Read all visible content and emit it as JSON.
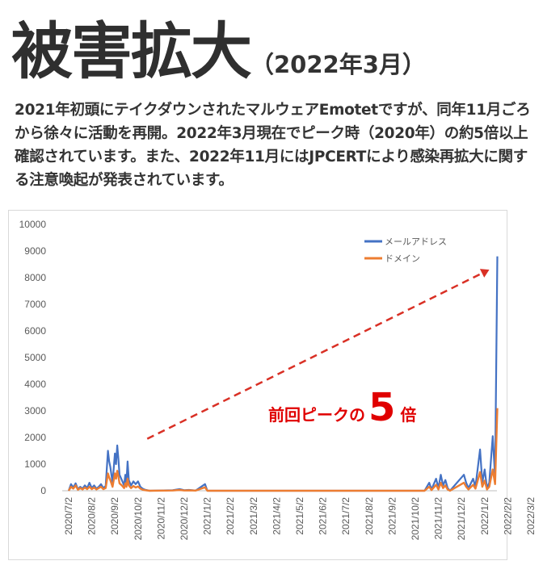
{
  "title": {
    "main": "被害拡大",
    "sub": "（2022年3月）"
  },
  "description": "2021年初頭にテイクダウンされたマルウェアEmotetですが、同年11月ごろから徐々に活動を再開。2022年3月現在でピーク時（2020年）の約5倍以上確認されています。また、2022年11月にはJPCERTにより感染再拡大に関する注意喚起が発表されています。",
  "chart_data": {
    "type": "line",
    "ylim": [
      0,
      10000
    ],
    "yticks": [
      0,
      1000,
      2000,
      3000,
      4000,
      5000,
      6000,
      7000,
      8000,
      9000,
      10000
    ],
    "x_tick_labels": [
      "2020/7/2",
      "2020/8/2",
      "2020/9/2",
      "2020/10/2",
      "2020/11/2",
      "2020/12/2",
      "2021/1/2",
      "2021/2/2",
      "2021/3/2",
      "2021/4/2",
      "2021/5/2",
      "2021/6/2",
      "2021/7/2",
      "2021/8/2",
      "2021/9/2",
      "2021/10/2",
      "2021/11/2",
      "2021/12/2",
      "2022/1/2",
      "2022/2/2",
      "2022/3/2"
    ],
    "legend_position": "top-right",
    "grid": false,
    "series": [
      {
        "name": "メールアドレス",
        "color": "#4472c4",
        "points": [
          [
            0.0,
            0
          ],
          [
            0.1,
            250
          ],
          [
            0.2,
            120
          ],
          [
            0.3,
            280
          ],
          [
            0.4,
            60
          ],
          [
            0.5,
            150
          ],
          [
            0.6,
            80
          ],
          [
            0.7,
            200
          ],
          [
            0.8,
            100
          ],
          [
            0.9,
            300
          ],
          [
            1.0,
            100
          ],
          [
            1.1,
            200
          ],
          [
            1.2,
            80
          ],
          [
            1.3,
            150
          ],
          [
            1.4,
            250
          ],
          [
            1.5,
            100
          ],
          [
            1.6,
            180
          ],
          [
            1.7,
            1500
          ],
          [
            1.75,
            1100
          ],
          [
            1.8,
            900
          ],
          [
            1.9,
            300
          ],
          [
            2.0,
            1400
          ],
          [
            2.05,
            1000
          ],
          [
            2.1,
            1700
          ],
          [
            2.15,
            1200
          ],
          [
            2.2,
            600
          ],
          [
            2.3,
            400
          ],
          [
            2.4,
            200
          ],
          [
            2.45,
            600
          ],
          [
            2.5,
            300
          ],
          [
            2.55,
            1100
          ],
          [
            2.6,
            400
          ],
          [
            2.7,
            200
          ],
          [
            2.8,
            350
          ],
          [
            2.9,
            250
          ],
          [
            3.0,
            350
          ],
          [
            3.1,
            150
          ],
          [
            3.2,
            80
          ],
          [
            3.3,
            40
          ],
          [
            3.5,
            0
          ],
          [
            4.5,
            20
          ],
          [
            4.8,
            60
          ],
          [
            5.0,
            20
          ],
          [
            5.2,
            30
          ],
          [
            5.5,
            10
          ],
          [
            5.9,
            250
          ],
          [
            6.0,
            0
          ],
          [
            15.4,
            0
          ],
          [
            15.6,
            300
          ],
          [
            15.7,
            50
          ],
          [
            15.9,
            450
          ],
          [
            16.0,
            100
          ],
          [
            16.1,
            600
          ],
          [
            16.2,
            200
          ],
          [
            16.3,
            400
          ],
          [
            16.4,
            100
          ],
          [
            16.5,
            0
          ],
          [
            17.1,
            600
          ],
          [
            17.2,
            300
          ],
          [
            17.3,
            100
          ],
          [
            17.5,
            450
          ],
          [
            17.6,
            150
          ],
          [
            17.8,
            1550
          ],
          [
            17.9,
            300
          ],
          [
            18.0,
            800
          ],
          [
            18.1,
            100
          ],
          [
            18.2,
            300
          ],
          [
            18.35,
            2050
          ],
          [
            18.45,
            500
          ],
          [
            18.55,
            8800
          ]
        ]
      },
      {
        "name": "ドメイン",
        "color": "#ed7d31",
        "points": [
          [
            0.0,
            0
          ],
          [
            0.1,
            150
          ],
          [
            0.2,
            80
          ],
          [
            0.3,
            200
          ],
          [
            0.4,
            40
          ],
          [
            0.5,
            100
          ],
          [
            0.6,
            50
          ],
          [
            0.7,
            120
          ],
          [
            0.8,
            60
          ],
          [
            0.9,
            150
          ],
          [
            1.0,
            60
          ],
          [
            1.1,
            120
          ],
          [
            1.2,
            50
          ],
          [
            1.3,
            100
          ],
          [
            1.4,
            150
          ],
          [
            1.5,
            60
          ],
          [
            1.6,
            100
          ],
          [
            1.7,
            650
          ],
          [
            1.75,
            500
          ],
          [
            1.8,
            400
          ],
          [
            1.9,
            150
          ],
          [
            2.0,
            650
          ],
          [
            2.05,
            450
          ],
          [
            2.1,
            750
          ],
          [
            2.15,
            550
          ],
          [
            2.2,
            280
          ],
          [
            2.3,
            200
          ],
          [
            2.4,
            100
          ],
          [
            2.45,
            280
          ],
          [
            2.5,
            150
          ],
          [
            2.55,
            450
          ],
          [
            2.6,
            200
          ],
          [
            2.7,
            100
          ],
          [
            2.8,
            180
          ],
          [
            2.9,
            120
          ],
          [
            3.0,
            160
          ],
          [
            3.1,
            80
          ],
          [
            3.2,
            40
          ],
          [
            3.3,
            20
          ],
          [
            3.5,
            0
          ],
          [
            4.5,
            10
          ],
          [
            4.8,
            30
          ],
          [
            5.0,
            10
          ],
          [
            5.2,
            15
          ],
          [
            5.5,
            5
          ],
          [
            5.9,
            130
          ],
          [
            6.0,
            0
          ],
          [
            15.4,
            0
          ],
          [
            15.6,
            150
          ],
          [
            15.7,
            25
          ],
          [
            15.9,
            220
          ],
          [
            16.0,
            50
          ],
          [
            16.1,
            300
          ],
          [
            16.2,
            100
          ],
          [
            16.3,
            200
          ],
          [
            16.4,
            50
          ],
          [
            16.5,
            0
          ],
          [
            17.1,
            300
          ],
          [
            17.2,
            150
          ],
          [
            17.3,
            50
          ],
          [
            17.5,
            220
          ],
          [
            17.6,
            80
          ],
          [
            17.8,
            700
          ],
          [
            17.9,
            150
          ],
          [
            18.0,
            380
          ],
          [
            18.1,
            50
          ],
          [
            18.2,
            150
          ],
          [
            18.35,
            800
          ],
          [
            18.45,
            250
          ],
          [
            18.55,
            3100
          ]
        ]
      }
    ],
    "annotation": {
      "prefix": "前回ピークの",
      "number": "5",
      "suffix": "倍",
      "color": "#e00000"
    },
    "arrow": {
      "from": [
        3.4,
        1950
      ],
      "to": [
        18.2,
        8300
      ],
      "color": "#d93025"
    }
  }
}
